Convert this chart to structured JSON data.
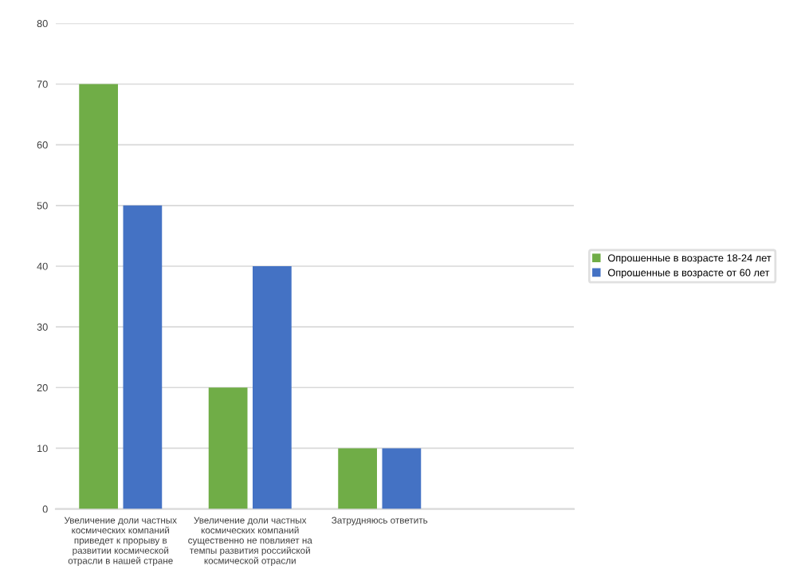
{
  "chart_data": {
    "type": "bar",
    "categories": [
      "Увеличение доли частных\nкосмических компаний\nприведет к прорыву в\nразвитии космической\nотрасли в нашей стране",
      "Увеличение доли частных\nкосмических компаний\nсущественно не повлияет на\nтемпы развития российской\nкосмической отрасли",
      "Затрудняюсь ответить",
      null
    ],
    "series": [
      {
        "name": "Опрошенные в возрасте 18-24 лет",
        "color": "#70ad47",
        "values": [
          70,
          20,
          10,
          null
        ]
      },
      {
        "name": "Опрошенные в возрасте от 60 лет",
        "color": "#4472c4",
        "values": [
          50,
          40,
          10,
          null
        ]
      }
    ],
    "ylim": [
      0,
      80
    ],
    "yticks": [
      0,
      10,
      20,
      30,
      40,
      50,
      60,
      70,
      80
    ],
    "grid": "y",
    "legend": "right"
  }
}
